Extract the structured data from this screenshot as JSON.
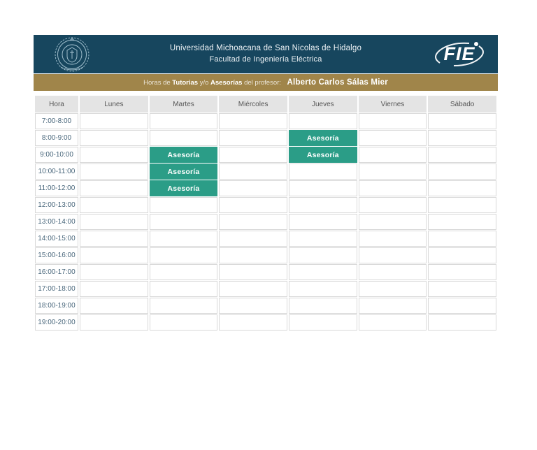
{
  "header": {
    "bg_color": "#17465e",
    "seal_icon": "university-seal",
    "title_line1": "Universidad Michoacana de San Nicolas de Hidalgo",
    "title_line2": "Facultad de Ingeniería Eléctrica",
    "fie_logo_text": "FIE"
  },
  "banner": {
    "bg_color": "#a0854a",
    "prefix": "Horas de ",
    "bold1": "Tutorias",
    "mid1": " y/o ",
    "bold2": "Asesorías",
    "mid2": " del profesor: ",
    "professor_name": "Alberto Carlos Sálas Mier"
  },
  "table": {
    "header_bg": "#e4e4e4",
    "event_color": "#2b9d87",
    "event_label": "Asesoría",
    "columns": [
      "Hora",
      "Lunes",
      "Martes",
      "Miércoles",
      "Jueves",
      "Viernes",
      "Sábado"
    ],
    "rows": [
      {
        "time": "7:00-8:00",
        "cells": [
          "",
          "",
          "",
          "",
          "",
          ""
        ]
      },
      {
        "time": "8:00-9:00",
        "cells": [
          "",
          "",
          "",
          "Asesoría",
          "",
          ""
        ]
      },
      {
        "time": "9:00-10:00",
        "cells": [
          "",
          "Asesoría",
          "",
          "Asesoría",
          "",
          ""
        ]
      },
      {
        "time": "10:00-11:00",
        "cells": [
          "",
          "Asesoría",
          "",
          "",
          "",
          ""
        ]
      },
      {
        "time": "11:00-12:00",
        "cells": [
          "",
          "Asesoría",
          "",
          "",
          "",
          ""
        ]
      },
      {
        "time": "12:00-13:00",
        "cells": [
          "",
          "",
          "",
          "",
          "",
          ""
        ]
      },
      {
        "time": "13:00-14:00",
        "cells": [
          "",
          "",
          "",
          "",
          "",
          ""
        ]
      },
      {
        "time": "14:00-15:00",
        "cells": [
          "",
          "",
          "",
          "",
          "",
          ""
        ]
      },
      {
        "time": "15:00-16:00",
        "cells": [
          "",
          "",
          "",
          "",
          "",
          ""
        ]
      },
      {
        "time": "16:00-17:00",
        "cells": [
          "",
          "",
          "",
          "",
          "",
          ""
        ]
      },
      {
        "time": "17:00-18:00",
        "cells": [
          "",
          "",
          "",
          "",
          "",
          ""
        ]
      },
      {
        "time": "18:00-19:00",
        "cells": [
          "",
          "",
          "",
          "",
          "",
          ""
        ]
      },
      {
        "time": "19:00-20:00",
        "cells": [
          "",
          "",
          "",
          "",
          "",
          ""
        ]
      }
    ]
  }
}
